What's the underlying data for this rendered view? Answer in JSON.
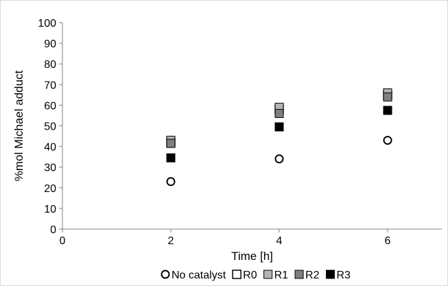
{
  "chart_data": {
    "type": "scatter",
    "title": "",
    "xlabel": "Time [h]",
    "ylabel": "%mol Michael adduct",
    "xlim": [
      0,
      7
    ],
    "ylim": [
      0,
      100
    ],
    "xticks": [
      0,
      2,
      4,
      6
    ],
    "yticks": [
      0,
      10,
      20,
      30,
      40,
      50,
      60,
      70,
      80,
      90,
      100
    ],
    "grid": false,
    "legend_position": "bottom",
    "series": [
      {
        "name": "No catalyst",
        "marker": "circle-open",
        "color": "#000000",
        "x": [
          2,
          4,
          6
        ],
        "y": [
          23,
          34,
          43
        ],
        "err": [
          0,
          0,
          0
        ]
      },
      {
        "name": "R0",
        "marker": "square-open",
        "color": "#000000",
        "x": [
          2,
          4,
          6
        ],
        "y": [
          42,
          58,
          65
        ],
        "err": [
          1,
          1,
          1
        ]
      },
      {
        "name": "R1",
        "marker": "square",
        "color": "#b3b3b3",
        "x": [
          2,
          4,
          6
        ],
        "y": [
          43,
          59,
          66
        ],
        "err": [
          1,
          1,
          1
        ]
      },
      {
        "name": "R2",
        "marker": "square",
        "color": "#7f7f7f",
        "x": [
          2,
          4,
          6
        ],
        "y": [
          41.5,
          56,
          64
        ],
        "err": [
          1.5,
          1.5,
          1.5
        ]
      },
      {
        "name": "R3",
        "marker": "square",
        "color": "#000000",
        "x": [
          2,
          4,
          6
        ],
        "y": [
          34.5,
          49.5,
          57.5
        ],
        "err": [
          1.5,
          1,
          1.5
        ]
      }
    ]
  }
}
